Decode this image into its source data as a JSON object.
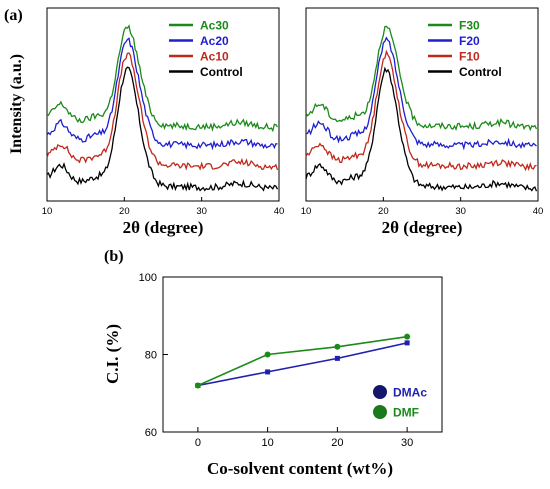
{
  "panel_labels": [
    "(a)",
    "(b)"
  ],
  "chart_data": [
    {
      "type": "line",
      "panel": "(a)",
      "xlabel": "2θ (degree)",
      "ylabel": "Intensity (a.u.)",
      "xlim": [
        10,
        40
      ],
      "xticks": [
        "10",
        "20",
        "30",
        "40"
      ],
      "legend_position": "top-right",
      "grid": false,
      "series": [
        {
          "name": "Ac30",
          "color": "#1b8a1b",
          "offset": 6.2
        },
        {
          "name": "Ac20",
          "color": "#1f1fd0",
          "offset": 4.6
        },
        {
          "name": "Ac10",
          "color": "#c0281c",
          "offset": 2.8
        },
        {
          "name": "Control",
          "color": "#000000",
          "offset": 1.0
        }
      ]
    },
    {
      "type": "line",
      "xlabel": "2θ (degree)",
      "xlim": [
        10,
        40
      ],
      "xticks": [
        "10",
        "20",
        "30",
        "40"
      ],
      "legend_position": "top-right",
      "grid": false,
      "series": [
        {
          "name": "F30",
          "color": "#1b8a1b",
          "offset": 6.2
        },
        {
          "name": "F20",
          "color": "#1f1fd0",
          "offset": 4.6
        },
        {
          "name": "F10",
          "color": "#c0281c",
          "offset": 2.8
        },
        {
          "name": "Control",
          "color": "#000000",
          "offset": 1.0
        }
      ]
    },
    {
      "type": "line",
      "panel": "(b)",
      "xlabel": "Co-solvent content (wt%)",
      "ylabel": "C.I. (%)",
      "x": [
        0,
        10,
        20,
        30
      ],
      "xlim": [
        -5,
        35
      ],
      "ylim": [
        60,
        100
      ],
      "xticks": [
        "0",
        "10",
        "20",
        "30"
      ],
      "yticks": [
        "60",
        "80",
        "100"
      ],
      "legend_position": "bottom-right",
      "grid": false,
      "series": [
        {
          "name": "DMAc",
          "color": "#1f1fb0",
          "marker": "square",
          "values": [
            72,
            75.5,
            79,
            83
          ]
        },
        {
          "name": "DMF",
          "color": "#1b8a1b",
          "marker": "circle",
          "values": [
            72,
            80,
            82,
            84.6
          ]
        }
      ]
    }
  ]
}
